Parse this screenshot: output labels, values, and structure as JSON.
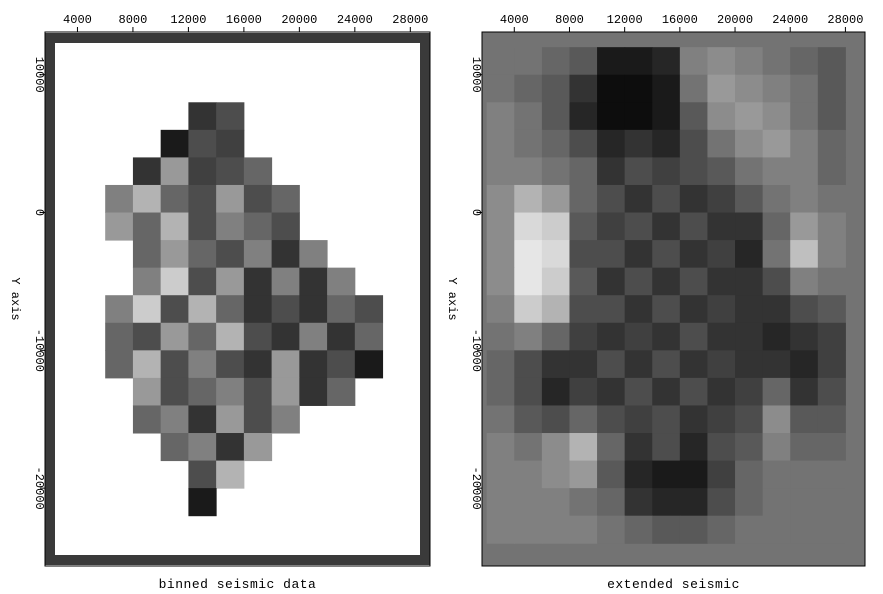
{
  "chart_data": [
    {
      "type": "heatmap",
      "title": "binned seismic data",
      "ylabel": "Y axis",
      "colormap": "gray",
      "background": "#ffffff",
      "frame": "#3a3a3a",
      "xlim": [
        1660,
        29420
      ],
      "ylim": [
        -25650,
        13100
      ],
      "xticks": [
        4000,
        8000,
        12000,
        16000,
        20000,
        24000,
        28000
      ],
      "yticks": [
        10000,
        0,
        -10000,
        -20000
      ],
      "x_edges": [
        2000,
        4000,
        6000,
        8000,
        10000,
        12000,
        14000,
        16000,
        18000,
        20000,
        22000,
        24000,
        26000,
        28000
      ],
      "y_edges": [
        12000,
        10000,
        8000,
        6000,
        4000,
        2000,
        0,
        -2000,
        -4000,
        -6000,
        -8000,
        -10000,
        -12000,
        -14000,
        -16000,
        -18000,
        -20000,
        -22000,
        -24000
      ],
      "values": [
        [
          null,
          null,
          null,
          null,
          null,
          null,
          null,
          null,
          null,
          null,
          null,
          null,
          null
        ],
        [
          null,
          null,
          null,
          null,
          null,
          null,
          null,
          null,
          null,
          null,
          null,
          null,
          null
        ],
        [
          null,
          null,
          null,
          null,
          null,
          0.2,
          0.3,
          null,
          null,
          null,
          null,
          null,
          null
        ],
        [
          null,
          null,
          null,
          null,
          0.1,
          0.3,
          0.25,
          null,
          null,
          null,
          null,
          null,
          null
        ],
        [
          null,
          null,
          null,
          0.2,
          0.6,
          0.25,
          0.3,
          0.4,
          null,
          null,
          null,
          null,
          null
        ],
        [
          null,
          null,
          0.5,
          0.7,
          0.4,
          0.3,
          0.6,
          0.3,
          0.4,
          null,
          null,
          null,
          null
        ],
        [
          null,
          null,
          0.6,
          0.4,
          0.7,
          0.3,
          0.5,
          0.4,
          0.3,
          null,
          null,
          null,
          null
        ],
        [
          null,
          null,
          null,
          0.4,
          0.6,
          0.4,
          0.3,
          0.5,
          0.2,
          0.5,
          null,
          null,
          null
        ],
        [
          null,
          null,
          null,
          0.5,
          0.8,
          0.3,
          0.6,
          0.2,
          0.5,
          0.2,
          0.5,
          null,
          null
        ],
        [
          null,
          null,
          0.5,
          0.8,
          0.3,
          0.7,
          0.4,
          0.2,
          0.3,
          0.2,
          0.4,
          0.3,
          null
        ],
        [
          null,
          null,
          0.4,
          0.3,
          0.6,
          0.4,
          0.7,
          0.3,
          0.2,
          0.5,
          0.2,
          0.4,
          null
        ],
        [
          null,
          null,
          0.4,
          0.7,
          0.3,
          0.5,
          0.3,
          0.2,
          0.6,
          0.2,
          0.3,
          0.1,
          null
        ],
        [
          null,
          null,
          null,
          0.6,
          0.3,
          0.4,
          0.5,
          0.3,
          0.6,
          0.2,
          0.4,
          null,
          null
        ],
        [
          null,
          null,
          null,
          0.4,
          0.5,
          0.2,
          0.6,
          0.3,
          0.5,
          null,
          null,
          null,
          null
        ],
        [
          null,
          null,
          null,
          null,
          0.4,
          0.5,
          0.2,
          0.6,
          null,
          null,
          null,
          null,
          null
        ],
        [
          null,
          null,
          null,
          null,
          null,
          0.3,
          0.7,
          null,
          null,
          null,
          null,
          null,
          null
        ],
        [
          null,
          null,
          null,
          null,
          null,
          0.1,
          null,
          null,
          null,
          null,
          null,
          null,
          null
        ],
        [
          null,
          null,
          null,
          null,
          null,
          null,
          null,
          null,
          null,
          null,
          null,
          null,
          null
        ]
      ]
    },
    {
      "type": "heatmap",
      "title": "extended seismic",
      "ylabel": "Y axis",
      "colormap": "gray",
      "background": "#737373",
      "frame": "#3a3a3a",
      "xlim": [
        1660,
        29420
      ],
      "ylim": [
        -25650,
        13100
      ],
      "xticks": [
        4000,
        8000,
        12000,
        16000,
        20000,
        24000,
        28000
      ],
      "yticks": [
        10000,
        0,
        -10000,
        -20000
      ],
      "x_edges": [
        2000,
        4000,
        6000,
        8000,
        10000,
        12000,
        14000,
        16000,
        18000,
        20000,
        22000,
        24000,
        26000,
        28000
      ],
      "y_edges": [
        12000,
        10000,
        8000,
        6000,
        4000,
        2000,
        0,
        -2000,
        -4000,
        -6000,
        -8000,
        -10000,
        -12000,
        -14000,
        -16000,
        -18000,
        -20000,
        -22000,
        -24000
      ],
      "values": [
        [
          0.45,
          0.45,
          0.4,
          0.35,
          0.1,
          0.1,
          0.15,
          0.5,
          0.55,
          0.5,
          0.45,
          0.4,
          0.35
        ],
        [
          0.45,
          0.4,
          0.35,
          0.2,
          0.05,
          0.05,
          0.1,
          0.45,
          0.6,
          0.55,
          0.5,
          0.45,
          0.35
        ],
        [
          0.5,
          0.45,
          0.35,
          0.15,
          0.05,
          0.05,
          0.1,
          0.35,
          0.55,
          0.6,
          0.55,
          0.45,
          0.35
        ],
        [
          0.5,
          0.45,
          0.4,
          0.3,
          0.15,
          0.2,
          0.15,
          0.3,
          0.45,
          0.55,
          0.6,
          0.5,
          0.4
        ],
        [
          0.5,
          0.5,
          0.45,
          0.4,
          0.2,
          0.3,
          0.25,
          0.3,
          0.35,
          0.45,
          0.5,
          0.5,
          0.4
        ],
        [
          0.55,
          0.7,
          0.6,
          0.4,
          0.3,
          0.2,
          0.3,
          0.2,
          0.25,
          0.35,
          0.45,
          0.5,
          0.45
        ],
        [
          0.55,
          0.85,
          0.8,
          0.35,
          0.25,
          0.3,
          0.2,
          0.3,
          0.2,
          0.2,
          0.4,
          0.6,
          0.5
        ],
        [
          0.55,
          0.9,
          0.85,
          0.3,
          0.3,
          0.2,
          0.3,
          0.2,
          0.25,
          0.15,
          0.45,
          0.75,
          0.5
        ],
        [
          0.55,
          0.9,
          0.8,
          0.35,
          0.2,
          0.3,
          0.2,
          0.3,
          0.2,
          0.2,
          0.3,
          0.5,
          0.45
        ],
        [
          0.5,
          0.8,
          0.7,
          0.3,
          0.3,
          0.2,
          0.3,
          0.2,
          0.25,
          0.2,
          0.2,
          0.3,
          0.35
        ],
        [
          0.45,
          0.5,
          0.4,
          0.25,
          0.2,
          0.25,
          0.2,
          0.3,
          0.2,
          0.2,
          0.15,
          0.2,
          0.25
        ],
        [
          0.4,
          0.3,
          0.2,
          0.2,
          0.3,
          0.2,
          0.3,
          0.2,
          0.25,
          0.2,
          0.2,
          0.15,
          0.25
        ],
        [
          0.4,
          0.3,
          0.15,
          0.25,
          0.2,
          0.3,
          0.2,
          0.3,
          0.2,
          0.25,
          0.4,
          0.2,
          0.3
        ],
        [
          0.45,
          0.35,
          0.3,
          0.4,
          0.3,
          0.25,
          0.3,
          0.2,
          0.25,
          0.3,
          0.55,
          0.35,
          0.35
        ],
        [
          0.5,
          0.45,
          0.55,
          0.7,
          0.4,
          0.2,
          0.3,
          0.15,
          0.3,
          0.35,
          0.5,
          0.4,
          0.4
        ],
        [
          0.5,
          0.5,
          0.55,
          0.6,
          0.35,
          0.15,
          0.1,
          0.1,
          0.25,
          0.4,
          0.45,
          0.45,
          0.45
        ],
        [
          0.5,
          0.5,
          0.5,
          0.45,
          0.4,
          0.2,
          0.15,
          0.15,
          0.3,
          0.4,
          0.45,
          0.45,
          0.45
        ],
        [
          0.5,
          0.5,
          0.5,
          0.5,
          0.45,
          0.4,
          0.35,
          0.35,
          0.4,
          0.45,
          0.45,
          0.45,
          0.45
        ]
      ]
    }
  ]
}
